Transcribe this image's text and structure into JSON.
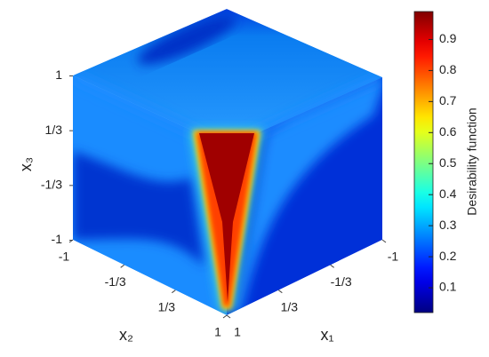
{
  "chart_data": {
    "type": "cube-heatmap",
    "axes": {
      "x1": {
        "label": "x₁",
        "ticks": [
          {
            "value": 1,
            "label": "1"
          },
          {
            "value": 0.3333,
            "label": "1/3"
          },
          {
            "value": -0.3333,
            "label": "-1/3"
          },
          {
            "value": -1,
            "label": "-1"
          }
        ]
      },
      "x2": {
        "label": "x₂",
        "ticks": [
          {
            "value": -1,
            "label": "-1"
          },
          {
            "value": -0.3333,
            "label": "-1/3"
          },
          {
            "value": 0.3333,
            "label": "1/3"
          },
          {
            "value": 1,
            "label": "1"
          }
        ]
      },
      "x3": {
        "label": "x₃",
        "ticks": [
          {
            "value": 1,
            "label": "1"
          },
          {
            "value": 0.3333,
            "label": "1/3"
          },
          {
            "value": -0.3333,
            "label": "-1/3"
          },
          {
            "value": -1,
            "label": "-1"
          }
        ]
      }
    },
    "colorbar": {
      "label": "Desirability function",
      "colormap": "jet",
      "ylim": [
        0.02,
        0.99
      ],
      "yticks": [
        0.1,
        0.2,
        0.3,
        0.4,
        0.5,
        0.6,
        0.7,
        0.8,
        0.9
      ]
    }
  }
}
